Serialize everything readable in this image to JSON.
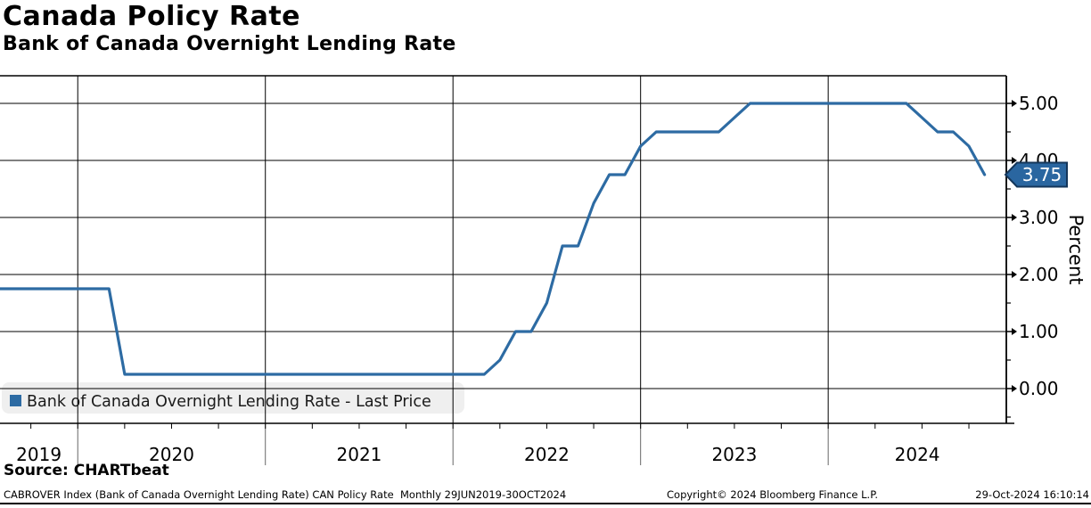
{
  "header": {
    "title": "Canada Policy Rate",
    "subtitle": "Bank of Canada Overnight Lending Rate"
  },
  "legend": {
    "label": "Bank of Canada Overnight Lending Rate - Last Price"
  },
  "y_axis": {
    "title": "Percent",
    "tick_labels": [
      "0.00",
      "1.00",
      "2.00",
      "3.00",
      "4.00",
      "5.00"
    ],
    "tick_values": [
      0,
      1,
      2,
      3,
      4,
      5
    ],
    "minor_tick_step": 0.5
  },
  "x_axis": {
    "year_labels": [
      "2019",
      "2020",
      "2021",
      "2022",
      "2023",
      "2024"
    ]
  },
  "last_price": {
    "label": "3.75",
    "value": 3.75
  },
  "footer": {
    "source": "Source: CHARTbeat",
    "info": "CABROVER Index (Bank of Canada Overnight Lending Rate) CAN Policy Rate  Monthly 29JUN2019-30OCT2024",
    "copyright": "Copyright© 2024 Bloomberg Finance L.P.",
    "timestamp": "29-Oct-2024 16:10:14"
  },
  "colors": {
    "line": "#2d6ba3",
    "badge_fill": "#2a66a0",
    "badge_border": "#14365a",
    "badge_text": "#ffffff",
    "legend_bg": "#efefef",
    "grid": "#000000",
    "frame": "#000000",
    "year_separator": "#666666",
    "text": "#000000"
  },
  "chart_data": {
    "type": "line",
    "title": "Canada Policy Rate",
    "subtitle": "Bank of Canada Overnight Lending Rate",
    "xlabel": "",
    "ylabel": "Percent",
    "ylim": [
      0,
      5
    ],
    "grid": true,
    "legend_position": "bottom-left",
    "frequency": "monthly",
    "x_range": "29JUN2019-30OCT2024",
    "categories": [
      "2019-06",
      "2019-07",
      "2019-08",
      "2019-09",
      "2019-10",
      "2019-11",
      "2019-12",
      "2020-01",
      "2020-02",
      "2020-03",
      "2020-04",
      "2020-05",
      "2020-06",
      "2020-07",
      "2020-08",
      "2020-09",
      "2020-10",
      "2020-11",
      "2020-12",
      "2021-01",
      "2021-02",
      "2021-03",
      "2021-04",
      "2021-05",
      "2021-06",
      "2021-07",
      "2021-08",
      "2021-09",
      "2021-10",
      "2021-11",
      "2021-12",
      "2022-01",
      "2022-02",
      "2022-03",
      "2022-04",
      "2022-05",
      "2022-06",
      "2022-07",
      "2022-08",
      "2022-09",
      "2022-10",
      "2022-11",
      "2022-12",
      "2023-01",
      "2023-02",
      "2023-03",
      "2023-04",
      "2023-05",
      "2023-06",
      "2023-07",
      "2023-08",
      "2023-09",
      "2023-10",
      "2023-11",
      "2023-12",
      "2024-01",
      "2024-02",
      "2024-03",
      "2024-04",
      "2024-05",
      "2024-06",
      "2024-07",
      "2024-08",
      "2024-09",
      "2024-10"
    ],
    "series": [
      {
        "name": "Bank of Canada Overnight Lending Rate - Last Price",
        "values": [
          1.75,
          1.75,
          1.75,
          1.75,
          1.75,
          1.75,
          1.75,
          1.75,
          1.75,
          0.25,
          0.25,
          0.25,
          0.25,
          0.25,
          0.25,
          0.25,
          0.25,
          0.25,
          0.25,
          0.25,
          0.25,
          0.25,
          0.25,
          0.25,
          0.25,
          0.25,
          0.25,
          0.25,
          0.25,
          0.25,
          0.25,
          0.25,
          0.25,
          0.5,
          1.0,
          1.0,
          1.5,
          2.5,
          2.5,
          3.25,
          3.75,
          3.75,
          4.25,
          4.5,
          4.5,
          4.5,
          4.5,
          4.5,
          4.75,
          5.0,
          5.0,
          5.0,
          5.0,
          5.0,
          5.0,
          5.0,
          5.0,
          5.0,
          5.0,
          5.0,
          4.75,
          4.5,
          4.5,
          4.25,
          3.75
        ]
      }
    ],
    "last_value": 3.75
  }
}
